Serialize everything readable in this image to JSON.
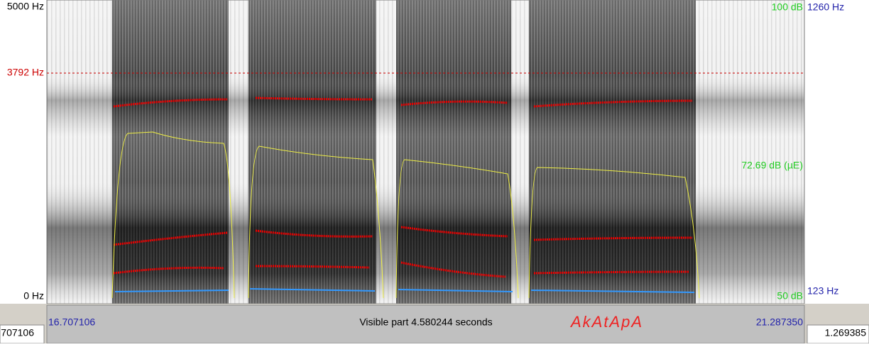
{
  "left_axis": {
    "top": "5000 Hz",
    "cursor": "3792 Hz",
    "bottom": "0 Hz"
  },
  "right_axis": {
    "intensity_top": "100 dB",
    "pitch_top": "1260 Hz",
    "intensity_value": "72.69 dB (µE)",
    "pitch_bottom": "123 Hz",
    "intensity_bottom": "50 dB"
  },
  "time_bar": {
    "start": "16.707106",
    "visible": "Visible part 4.580244 seconds",
    "end": "21.287350"
  },
  "text_grid": {
    "label": "AkAtApA"
  },
  "window_bar": {
    "left": "707106",
    "right": "1.269385"
  }
}
